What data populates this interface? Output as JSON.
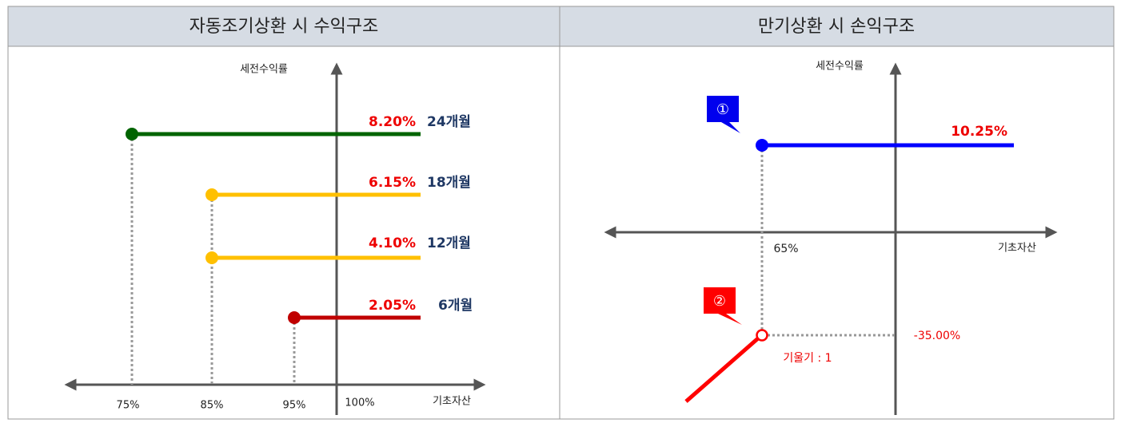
{
  "panels": [
    {
      "title": "자동조기상환 시 수익구조",
      "y_axis_label": "세전수익률",
      "x_axis_label": "기초자산",
      "x_ticks": [
        "75%",
        "85%",
        "95%",
        "100%"
      ],
      "lines": [
        {
          "rate": "8.20%",
          "period": "24개월"
        },
        {
          "rate": "6.15%",
          "period": "18개월"
        },
        {
          "rate": "4.10%",
          "period": "12개월"
        },
        {
          "rate": "2.05%",
          "period": "6개월"
        }
      ]
    },
    {
      "title": "만기상환 시 손익구조",
      "y_axis_label": "세전수익률",
      "x_axis_label": "기초자산",
      "x_tick": "65%",
      "callouts": [
        "①",
        "②"
      ],
      "upper_rate": "10.25%",
      "lower_rate": "-35.00%",
      "slope_label": "기울기 : 1"
    }
  ]
}
